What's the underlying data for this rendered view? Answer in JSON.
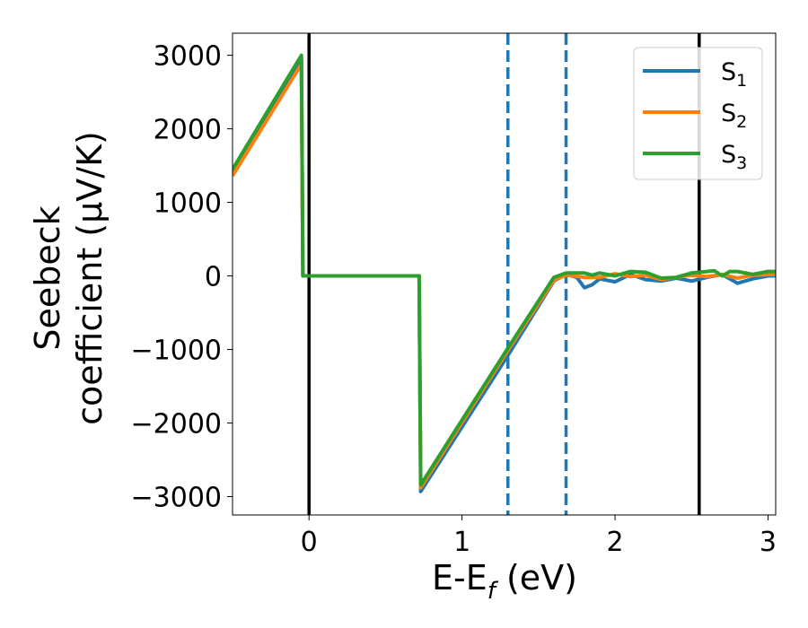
{
  "chart_data": {
    "type": "line",
    "xlabel": "E-E$_f$ (eV)",
    "xlabel_parts": {
      "main": "E-E",
      "sub": "f",
      "tail": " (eV)"
    },
    "ylabel_lines": [
      "Seebeck",
      "coefficient  (μV/K)"
    ],
    "xlim": [
      -0.5,
      3.05
    ],
    "ylim": [
      -3250,
      3300
    ],
    "xticks": [
      0,
      1,
      2,
      3
    ],
    "yticks": [
      -3000,
      -2000,
      -1000,
      0,
      1000,
      2000,
      3000
    ],
    "xtick_labels": [
      "0",
      "1",
      "2",
      "3"
    ],
    "ytick_labels": [
      "−3000",
      "−2000",
      "−1000",
      "0",
      "1000",
      "2000",
      "3000"
    ],
    "grid": false,
    "legend_position": "upper-right",
    "vlines": [
      {
        "x": 0.0,
        "style": "solid",
        "color": "#000000"
      },
      {
        "x": 2.55,
        "style": "solid",
        "color": "#000000"
      },
      {
        "x": 1.3,
        "style": "dashed",
        "color": "#1f77b4"
      },
      {
        "x": 1.68,
        "style": "dashed",
        "color": "#1f77b4"
      }
    ],
    "series": [
      {
        "name": "S1",
        "label_main": "S",
        "label_sub": "1",
        "color": "#1f77b4",
        "points": [
          [
            -0.5,
            1400
          ],
          [
            -0.05,
            2950
          ],
          [
            -0.04,
            0
          ],
          [
            0.72,
            0
          ],
          [
            0.73,
            -2930
          ],
          [
            1.3,
            -1080
          ],
          [
            1.6,
            -70
          ],
          [
            1.68,
            20
          ],
          [
            1.75,
            -20
          ],
          [
            1.8,
            -160
          ],
          [
            1.85,
            -120
          ],
          [
            1.9,
            -40
          ],
          [
            2.0,
            -80
          ],
          [
            2.1,
            20
          ],
          [
            2.2,
            -50
          ],
          [
            2.3,
            -70
          ],
          [
            2.4,
            -30
          ],
          [
            2.5,
            -70
          ],
          [
            2.6,
            -20
          ],
          [
            2.7,
            20
          ],
          [
            2.8,
            -100
          ],
          [
            2.9,
            -40
          ],
          [
            3.0,
            0
          ],
          [
            3.05,
            0
          ]
        ]
      },
      {
        "name": "S2",
        "label_main": "S",
        "label_sub": "2",
        "color": "#ff7f0e",
        "points": [
          [
            -0.5,
            1360
          ],
          [
            -0.05,
            2880
          ],
          [
            -0.04,
            0
          ],
          [
            0.72,
            0
          ],
          [
            0.73,
            -2880
          ],
          [
            1.3,
            -1010
          ],
          [
            1.6,
            -60
          ],
          [
            1.68,
            10
          ],
          [
            1.8,
            -20
          ],
          [
            1.9,
            -20
          ],
          [
            2.0,
            30
          ],
          [
            2.1,
            -10
          ],
          [
            2.2,
            10
          ],
          [
            2.3,
            -50
          ],
          [
            2.4,
            -20
          ],
          [
            2.5,
            10
          ],
          [
            2.6,
            -10
          ],
          [
            2.7,
            20
          ],
          [
            2.8,
            -30
          ],
          [
            2.9,
            10
          ],
          [
            3.05,
            20
          ]
        ]
      },
      {
        "name": "S3",
        "label_main": "S",
        "label_sub": "3",
        "color": "#2ca02c",
        "points": [
          [
            -0.5,
            1450
          ],
          [
            -0.05,
            3000
          ],
          [
            -0.04,
            0
          ],
          [
            0.72,
            0
          ],
          [
            0.73,
            -2840
          ],
          [
            1.3,
            -980
          ],
          [
            1.6,
            -20
          ],
          [
            1.68,
            40
          ],
          [
            1.8,
            40
          ],
          [
            1.85,
            10
          ],
          [
            1.9,
            40
          ],
          [
            2.0,
            0
          ],
          [
            2.1,
            60
          ],
          [
            2.2,
            50
          ],
          [
            2.3,
            -30
          ],
          [
            2.4,
            -20
          ],
          [
            2.5,
            40
          ],
          [
            2.6,
            60
          ],
          [
            2.65,
            70
          ],
          [
            2.7,
            0
          ],
          [
            2.75,
            60
          ],
          [
            2.8,
            60
          ],
          [
            2.9,
            20
          ],
          [
            3.0,
            60
          ],
          [
            3.05,
            60
          ]
        ]
      }
    ]
  }
}
